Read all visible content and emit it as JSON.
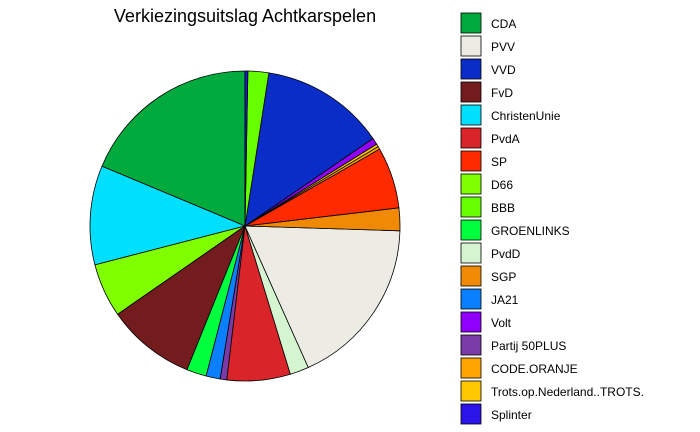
{
  "chart_data": {
    "type": "pie",
    "title": "Verkiezingsuitslag Achtkarspelen",
    "slices": [
      {
        "label": "CDA",
        "value": 19.0,
        "color": "#00AA3C"
      },
      {
        "label": "ChristenUnie",
        "value": 10.5,
        "color": "#00DFFC"
      },
      {
        "label": "D66",
        "value": 5.7,
        "color": "#7FFF00"
      },
      {
        "label": "FvD",
        "value": 9.4,
        "color": "#721C1E"
      },
      {
        "label": "GROENLINKS",
        "value": 2.1,
        "color": "#00FF3C"
      },
      {
        "label": "JA21",
        "value": 1.5,
        "color": "#0A7FFF"
      },
      {
        "label": "Partij 50PLUS",
        "value": 0.7,
        "color": "#7A3AA8"
      },
      {
        "label": "PvdA",
        "value": 6.7,
        "color": "#D9252A"
      },
      {
        "label": "PvdD",
        "value": 2.0,
        "color": "#D5F5D0"
      },
      {
        "label": "PVV",
        "value": 18.1,
        "color": "#ECECE4"
      },
      {
        "label": "SGP",
        "value": 2.4,
        "color": "#F08A05"
      },
      {
        "label": "SP",
        "value": 6.5,
        "color": "#FF2A00"
      },
      {
        "label": "CODE.ORANJE",
        "value": 0.3,
        "color": "#FFA500"
      },
      {
        "label": "Trots.op.Nederland..TROTS.",
        "value": 0.3,
        "color": "#FFC800"
      },
      {
        "label": "Volt",
        "value": 0.7,
        "color": "#8F00FF"
      },
      {
        "label": "VVD",
        "value": 13.2,
        "color": "#0A2DC8"
      },
      {
        "label": "BBB",
        "value": 2.2,
        "color": "#66FF00"
      },
      {
        "label": "Splinter",
        "value": 0.3,
        "color": "#2A14E8"
      }
    ],
    "legend": {
      "position": "right",
      "entries": [
        {
          "label": "CDA",
          "color": "#00AA3C"
        },
        {
          "label": "PVV",
          "color": "#ECECE4"
        },
        {
          "label": "VVD",
          "color": "#0A2DC8"
        },
        {
          "label": "FvD",
          "color": "#721C1E"
        },
        {
          "label": "ChristenUnie",
          "color": "#00DFFC"
        },
        {
          "label": "PvdA",
          "color": "#D9252A"
        },
        {
          "label": "SP",
          "color": "#FF2A00"
        },
        {
          "label": "D66",
          "color": "#7FFF00"
        },
        {
          "label": "BBB",
          "color": "#66FF00"
        },
        {
          "label": "GROENLINKS",
          "color": "#00FF3C"
        },
        {
          "label": "PvdD",
          "color": "#D5F5D0"
        },
        {
          "label": "SGP",
          "color": "#F08A05"
        },
        {
          "label": "JA21",
          "color": "#0A7FFF"
        },
        {
          "label": "Volt",
          "color": "#8F00FF"
        },
        {
          "label": "Partij 50PLUS",
          "color": "#7A3AA8"
        },
        {
          "label": "CODE.ORANJE",
          "color": "#FFA500"
        },
        {
          "label": "Trots.op.Nederland..TROTS.",
          "color": "#FFC800"
        },
        {
          "label": "Splinter",
          "color": "#2A14E8"
        }
      ]
    }
  }
}
